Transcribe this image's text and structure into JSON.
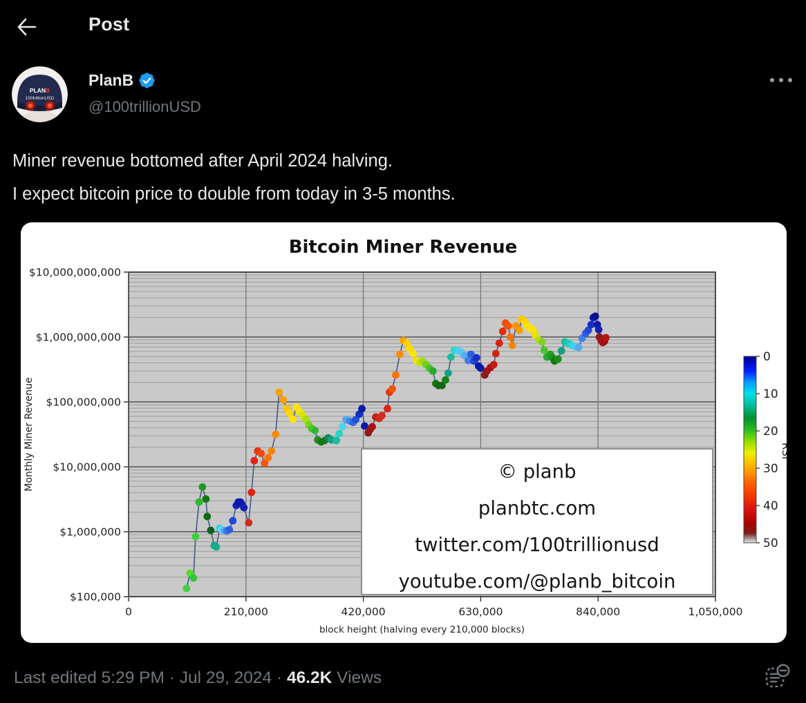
{
  "colors": {
    "background": "#000000",
    "text_primary": "#e7e9ea",
    "text_secondary": "#71767b",
    "accent_blue": "#1d9bf0",
    "card_bg": "#ffffff"
  },
  "header": {
    "title": "Post",
    "back_icon": "arrow-left"
  },
  "post": {
    "author": {
      "name": "PlanB",
      "handle": "@100trillionUSD",
      "verified": true,
      "avatar": {
        "cap_text_top": "PLAN",
        "cap_text_top_b": "B",
        "cap_text_bottom": "100trillionUSD"
      }
    },
    "more_icon": "ellipsis",
    "text_lines": [
      "Miner revenue bottomed after April 2024 halving.",
      "I expect bitcoin price to double from today in 3-5 months."
    ],
    "meta": {
      "edited_line": "Last edited 5:29 PM · Jul 29, 2024 · ",
      "views_count": "46.2K",
      "views_label": " Views"
    }
  },
  "chart_data": {
    "type": "scatter",
    "title": "Bitcoin Miner Revenue",
    "xlabel": "block height (halving every 210,000 blocks)",
    "ylabel": "Monthly Miner Revenue",
    "xlim": [
      0,
      1050000
    ],
    "ylim": [
      100000,
      10000000000
    ],
    "y_scale": "log",
    "grid": true,
    "plot_bg": "#c9c9c9",
    "line_color": "#52628f",
    "x_ticks": [
      {
        "value": 0,
        "label": "0"
      },
      {
        "value": 210000,
        "label": "210,000"
      },
      {
        "value": 420000,
        "label": "420,000"
      },
      {
        "value": 630000,
        "label": "630,000"
      },
      {
        "value": 840000,
        "label": "840,000"
      },
      {
        "value": 1050000,
        "label": "1,050,000"
      }
    ],
    "y_ticks": [
      {
        "value": 100000,
        "label": "$100,000"
      },
      {
        "value": 1000000,
        "label": "$1,000,000"
      },
      {
        "value": 10000000,
        "label": "$10,000,000"
      },
      {
        "value": 100000000,
        "label": "$100,000,000"
      },
      {
        "value": 1000000000,
        "label": "$1,000,000,000"
      },
      {
        "value": 10000000000,
        "label": "$10,000,000,000"
      }
    ],
    "legend_box": {
      "lines": [
        "© planb",
        "planbtc.com",
        "twitter.com/100trillionusd",
        "youtube.com/@planb_bitcoin"
      ]
    },
    "colorbar": {
      "label": "RSI",
      "ticks": [
        "0",
        "10",
        "20",
        "30",
        "40",
        "50"
      ],
      "stops": [
        [
          0.0,
          "#000090"
        ],
        [
          0.08,
          "#0020ff"
        ],
        [
          0.14,
          "#00a0ff"
        ],
        [
          0.2,
          "#00e0e8"
        ],
        [
          0.27,
          "#00b890"
        ],
        [
          0.33,
          "#009030"
        ],
        [
          0.4,
          "#30c020"
        ],
        [
          0.46,
          "#98e000"
        ],
        [
          0.52,
          "#f0ee00"
        ],
        [
          0.6,
          "#ffa800"
        ],
        [
          0.68,
          "#ff6000"
        ],
        [
          0.76,
          "#f03000"
        ],
        [
          0.82,
          "#dd1010"
        ],
        [
          0.9,
          "#a80000"
        ],
        [
          0.95,
          "#7a2020"
        ],
        [
          0.98,
          "#b0a0a0"
        ],
        [
          1.0,
          "#ececec"
        ]
      ]
    },
    "points": [
      [
        103800,
        134000,
        "#3ecf3e"
      ],
      [
        109900,
        230000,
        "#52dd2e"
      ],
      [
        116100,
        194000,
        "#35c435"
      ],
      [
        119800,
        840000,
        "#3ecf3e"
      ],
      [
        126000,
        2870000,
        "#2eb82e"
      ],
      [
        132200,
        4900000,
        "#1f9a1f"
      ],
      [
        138400,
        3200000,
        "#157815"
      ],
      [
        140800,
        1720000,
        "#0f6a0f"
      ],
      [
        147000,
        1050000,
        "#0e5e20"
      ],
      [
        153200,
        613000,
        "#17a589"
      ],
      [
        156900,
        584000,
        "#1aab8e"
      ],
      [
        163100,
        1130000,
        "#29d3e0"
      ],
      [
        166800,
        1080000,
        "#66d9f5"
      ],
      [
        170500,
        1050000,
        "#5aaef5"
      ],
      [
        175400,
        1030000,
        "#3a7bef"
      ],
      [
        180300,
        1080000,
        "#2b5fe0"
      ],
      [
        186500,
        1480000,
        "#2447d6"
      ],
      [
        192700,
        2540000,
        "#1022b8"
      ],
      [
        196400,
        2870000,
        "#0b1aa8"
      ],
      [
        200100,
        2870000,
        "#0b1aa8"
      ],
      [
        202600,
        2660000,
        "#0b1aa8"
      ],
      [
        206300,
        2350000,
        "#101fb0"
      ],
      [
        215000,
        1380000,
        "#d42a1a"
      ],
      [
        219900,
        4030000,
        "#e02211"
      ],
      [
        224800,
        12400000,
        "#e02211"
      ],
      [
        231000,
        17500000,
        "#e8330f"
      ],
      [
        237200,
        16100000,
        "#f04a0a"
      ],
      [
        243300,
        11400000,
        "#f55505"
      ],
      [
        249500,
        13800000,
        "#fa7300"
      ],
      [
        255700,
        17500000,
        "#fb8500"
      ],
      [
        263100,
        31600000,
        "#fb8c00"
      ],
      [
        269300,
        141000000,
        "#fba000"
      ],
      [
        276700,
        108000000,
        "#fb9e00"
      ],
      [
        282900,
        80000000,
        "#fdc500"
      ],
      [
        287800,
        67000000,
        "#ffd900"
      ],
      [
        294000,
        54000000,
        "#ffe400"
      ],
      [
        300200,
        83000000,
        "#ffe400"
      ],
      [
        305100,
        72000000,
        "#f5e400"
      ],
      [
        311300,
        63000000,
        "#d9e300"
      ],
      [
        317400,
        53000000,
        "#a8e000"
      ],
      [
        322400,
        44500000,
        "#7ed321"
      ],
      [
        327300,
        39000000,
        "#4fc42a"
      ],
      [
        333500,
        36400000,
        "#35b535"
      ],
      [
        338400,
        26000000,
        "#1d8f1d"
      ],
      [
        344600,
        24200000,
        "#157815"
      ],
      [
        350800,
        25400000,
        "#157815"
      ],
      [
        357000,
        28000000,
        "#128a66"
      ],
      [
        363100,
        26000000,
        "#16a085"
      ],
      [
        371800,
        25400000,
        "#1abc9c"
      ],
      [
        376700,
        32300000,
        "#2ad4c8"
      ],
      [
        382900,
        41500000,
        "#45d6f0"
      ],
      [
        389100,
        53400000,
        "#55aaf0"
      ],
      [
        395300,
        50800000,
        "#3f8ae8"
      ],
      [
        401400,
        48300000,
        "#2f6ae0"
      ],
      [
        406400,
        53400000,
        "#2450d8"
      ],
      [
        412600,
        64700000,
        "#1330c0"
      ],
      [
        417500,
        78600000,
        "#0b1aa8"
      ],
      [
        422400,
        42500000,
        "#0b1aa8"
      ],
      [
        428600,
        33400000,
        "#8b1a1a"
      ],
      [
        432300,
        37700000,
        "#9c1515"
      ],
      [
        436000,
        41500000,
        "#a81111"
      ],
      [
        442200,
        58500000,
        "#c41f10"
      ],
      [
        448400,
        55700000,
        "#d42a1a"
      ],
      [
        453300,
        61500000,
        "#d42a1a"
      ],
      [
        463200,
        78600000,
        "#e02211"
      ],
      [
        466900,
        141000000,
        "#e8330f"
      ],
      [
        471800,
        159000000,
        "#ee5505"
      ],
      [
        478000,
        259000000,
        "#fa7300"
      ],
      [
        485400,
        542000000,
        "#fb8c00"
      ],
      [
        491600,
        884000000,
        "#fb9e00"
      ],
      [
        497800,
        805000000,
        "#ffd000"
      ],
      [
        502700,
        660000000,
        "#ffdd00"
      ],
      [
        508900,
        556000000,
        "#ffe400"
      ],
      [
        515100,
        435000000,
        "#f0e400"
      ],
      [
        521300,
        405000000,
        "#c8e000"
      ],
      [
        526200,
        425000000,
        "#a0d816"
      ],
      [
        532400,
        375000000,
        "#6fcf1f"
      ],
      [
        538500,
        330000000,
        "#44c228"
      ],
      [
        544700,
        298000000,
        "#2aa82a"
      ],
      [
        549600,
        192000000,
        "#157815"
      ],
      [
        554600,
        179000000,
        "#116811"
      ],
      [
        560800,
        179000000,
        "#116811"
      ],
      [
        567000,
        218000000,
        "#158515"
      ],
      [
        571900,
        278000000,
        "#16a085"
      ],
      [
        576800,
        490000000,
        "#1abc9c"
      ],
      [
        583000,
        628000000,
        "#2ad4c8"
      ],
      [
        589200,
        613000000,
        "#3ed8ee"
      ],
      [
        595400,
        584000000,
        "#55c8f5"
      ],
      [
        601500,
        515000000,
        "#55aaf0"
      ],
      [
        607700,
        435000000,
        "#3f7fe8"
      ],
      [
        612600,
        542000000,
        "#2f5fe0"
      ],
      [
        617600,
        426000000,
        "#2447d6"
      ],
      [
        622500,
        480000000,
        "#1830c8"
      ],
      [
        626200,
        357000000,
        "#0b1aa8"
      ],
      [
        629900,
        332000000,
        "#0b1aa8"
      ],
      [
        637300,
        259000000,
        "#8b1a1a"
      ],
      [
        641000,
        298000000,
        "#9c1515"
      ],
      [
        647200,
        338000000,
        "#a81111"
      ],
      [
        653400,
        375000000,
        "#c41f10"
      ],
      [
        657100,
        556000000,
        "#d02415"
      ],
      [
        663200,
        805000000,
        "#e02211"
      ],
      [
        669400,
        1220000000,
        "#e42d0d"
      ],
      [
        674400,
        1640000000,
        "#ee4f08"
      ],
      [
        679300,
        1480000000,
        "#f55505"
      ],
      [
        683000,
        996000000,
        "#fa7300"
      ],
      [
        686700,
        745000000,
        "#fb8500"
      ],
      [
        692900,
        1480000000,
        "#fb9000"
      ],
      [
        699100,
        1270000000,
        "#fb9e00"
      ],
      [
        702800,
        1880000000,
        "#fdc500"
      ],
      [
        709000,
        1740000000,
        "#ffd900"
      ],
      [
        713900,
        1440000000,
        "#ffe400"
      ],
      [
        718800,
        1370000000,
        "#ffe400"
      ],
      [
        723800,
        1270000000,
        "#f8e400"
      ],
      [
        727500,
        1070000000,
        "#e8e200"
      ],
      [
        733700,
        900000000,
        "#b8dd10"
      ],
      [
        739900,
        840000000,
        "#7ed321"
      ],
      [
        743600,
        628000000,
        "#4fc42a"
      ],
      [
        748500,
        490000000,
        "#2aa82a"
      ],
      [
        754700,
        542000000,
        "#22a022"
      ],
      [
        758400,
        480000000,
        "#1d901d"
      ],
      [
        762100,
        426000000,
        "#157815"
      ],
      [
        768300,
        457000000,
        "#189018"
      ],
      [
        774500,
        613000000,
        "#16a085"
      ],
      [
        780600,
        840000000,
        "#1abc9c"
      ],
      [
        786800,
        805000000,
        "#22ccb8"
      ],
      [
        793000,
        745000000,
        "#2ad4e0"
      ],
      [
        799200,
        710000000,
        "#45d0f5"
      ],
      [
        805300,
        693000000,
        "#55aaf0"
      ],
      [
        811500,
        957000000,
        "#3f7fe8"
      ],
      [
        817700,
        1140000000,
        "#2f5fe0"
      ],
      [
        822600,
        1270000000,
        "#2447d6"
      ],
      [
        827600,
        1550000000,
        "#1530c8"
      ],
      [
        831300,
        1990000000,
        "#0b1aa8"
      ],
      [
        835000,
        2090000000,
        "#081390"
      ],
      [
        838700,
        1550000000,
        "#0b1aa8"
      ],
      [
        841100,
        1300000000,
        "#101fb0"
      ],
      [
        842500,
        1000000000,
        "#8b1a1a"
      ],
      [
        845500,
        884000000,
        "#9c1515"
      ],
      [
        848500,
        820000000,
        "#a81111"
      ],
      [
        851500,
        860000000,
        "#a01212"
      ],
      [
        854000,
        975000000,
        "#b81414"
      ]
    ]
  }
}
